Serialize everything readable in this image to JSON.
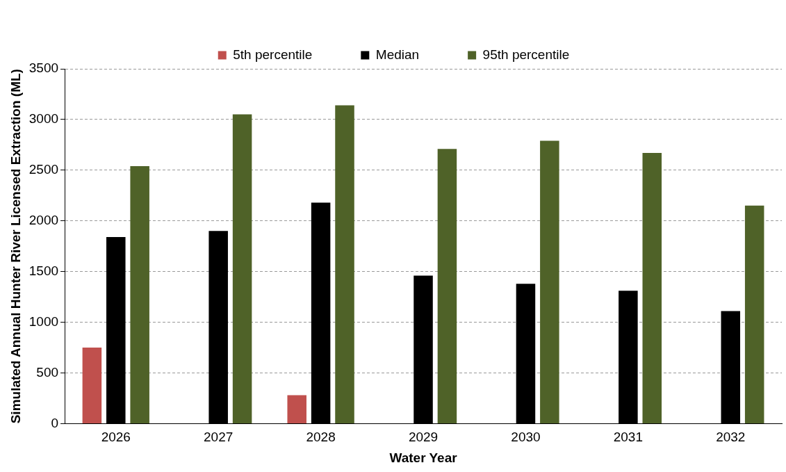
{
  "chart_data": {
    "type": "bar",
    "xlabel": "Water Year",
    "ylabel": "Simulated Annual Hunter River Licensed Extraction (ML)",
    "categories": [
      "2026",
      "2027",
      "2028",
      "2029",
      "2030",
      "2031",
      "2032"
    ],
    "series": [
      {
        "name": "5th percentile",
        "color": "#c0504d",
        "values": [
          750,
          0,
          280,
          0,
          0,
          0,
          0
        ]
      },
      {
        "name": "Median",
        "color": "#000000",
        "values": [
          1840,
          1900,
          2180,
          1460,
          1380,
          1310,
          1110
        ]
      },
      {
        "name": "95th percentile",
        "color": "#4f6228",
        "values": [
          2540,
          3050,
          3140,
          2710,
          2790,
          2670,
          2150
        ]
      }
    ],
    "ylim": [
      0,
      3500
    ],
    "yticks": [
      0,
      500,
      1000,
      1500,
      2000,
      2500,
      3000,
      3500
    ],
    "grid": "y",
    "legend": "top"
  }
}
